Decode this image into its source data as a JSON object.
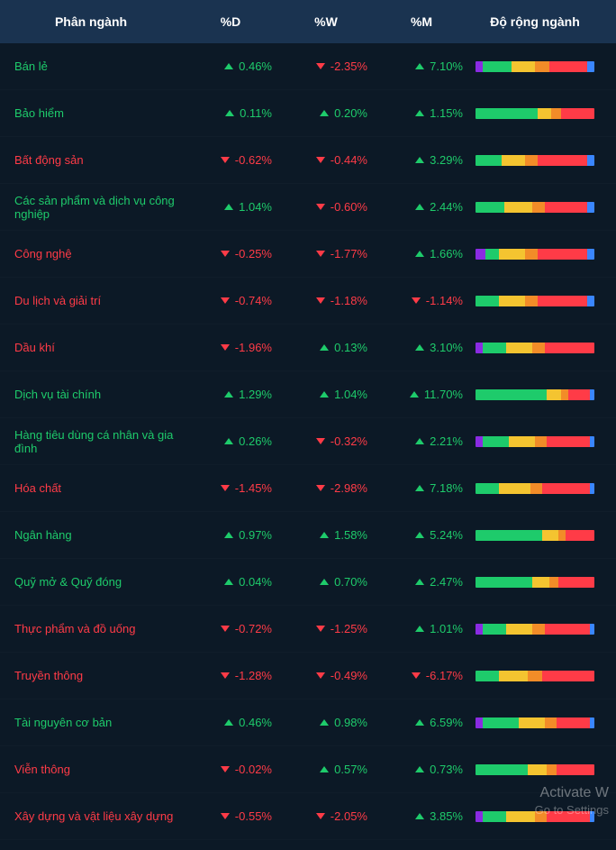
{
  "colors": {
    "background": "#0c1926",
    "header_bg": "#1a3350",
    "up": "#1ecb6b",
    "down": "#ff3b47",
    "seg_purple": "#8a2be2",
    "seg_green": "#1ecb6b",
    "seg_yellow": "#f4c430",
    "seg_orange": "#f28c28",
    "seg_red": "#ff3b47",
    "seg_blue": "#3a86ff"
  },
  "header": {
    "c1": "Phân ngành",
    "c2": "%D",
    "c3": "%W",
    "c4": "%M",
    "c5": "Độ rộng ngành"
  },
  "watermark": {
    "line1": "Activate W",
    "line2": "Go to Settings"
  },
  "rows": [
    {
      "name": "Bán lẻ",
      "d": "0.46%",
      "d_dir": "up",
      "w": "-2.35%",
      "w_dir": "down",
      "m": "7.10%",
      "m_dir": "up",
      "bar": [
        [
          "purple",
          6
        ],
        [
          "green",
          24
        ],
        [
          "yellow",
          20
        ],
        [
          "orange",
          12
        ],
        [
          "red",
          32
        ],
        [
          "blue",
          6
        ]
      ]
    },
    {
      "name": "Bảo hiểm",
      "d": "0.11%",
      "d_dir": "up",
      "w": "0.20%",
      "w_dir": "up",
      "m": "1.15%",
      "m_dir": "up",
      "bar": [
        [
          "green",
          52
        ],
        [
          "yellow",
          12
        ],
        [
          "orange",
          8
        ],
        [
          "red",
          28
        ]
      ]
    },
    {
      "name": "Bất động sản",
      "d": "-0.62%",
      "d_dir": "down",
      "w": "-0.44%",
      "w_dir": "down",
      "m": "3.29%",
      "m_dir": "up",
      "bar": [
        [
          "green",
          22
        ],
        [
          "yellow",
          20
        ],
        [
          "orange",
          10
        ],
        [
          "red",
          42
        ],
        [
          "blue",
          6
        ]
      ]
    },
    {
      "name": "Các sản phẩm và dịch vụ công nghiệp",
      "d": "1.04%",
      "d_dir": "up",
      "w": "-0.60%",
      "w_dir": "down",
      "m": "2.44%",
      "m_dir": "up",
      "bar": [
        [
          "green",
          24
        ],
        [
          "yellow",
          24
        ],
        [
          "orange",
          10
        ],
        [
          "red",
          36
        ],
        [
          "blue",
          6
        ]
      ]
    },
    {
      "name": "Công nghệ",
      "d": "-0.25%",
      "d_dir": "down",
      "w": "-1.77%",
      "w_dir": "down",
      "m": "1.66%",
      "m_dir": "up",
      "bar": [
        [
          "purple",
          8
        ],
        [
          "green",
          12
        ],
        [
          "yellow",
          22
        ],
        [
          "orange",
          10
        ],
        [
          "red",
          42
        ],
        [
          "blue",
          6
        ]
      ]
    },
    {
      "name": "Du lịch và giải trí",
      "d": "-0.74%",
      "d_dir": "down",
      "w": "-1.18%",
      "w_dir": "down",
      "m": "-1.14%",
      "m_dir": "down",
      "bar": [
        [
          "green",
          20
        ],
        [
          "yellow",
          22
        ],
        [
          "orange",
          10
        ],
        [
          "red",
          42
        ],
        [
          "blue",
          6
        ]
      ]
    },
    {
      "name": "Dầu khí",
      "d": "-1.96%",
      "d_dir": "down",
      "w": "0.13%",
      "w_dir": "up",
      "m": "3.10%",
      "m_dir": "up",
      "bar": [
        [
          "purple",
          6
        ],
        [
          "green",
          20
        ],
        [
          "yellow",
          22
        ],
        [
          "orange",
          10
        ],
        [
          "red",
          42
        ]
      ]
    },
    {
      "name": "Dịch vụ tài chính",
      "d": "1.29%",
      "d_dir": "up",
      "w": "1.04%",
      "w_dir": "up",
      "m": "11.70%",
      "m_dir": "up",
      "bar": [
        [
          "green",
          60
        ],
        [
          "yellow",
          12
        ],
        [
          "orange",
          6
        ],
        [
          "red",
          18
        ],
        [
          "blue",
          4
        ]
      ]
    },
    {
      "name": "Hàng tiêu dùng cá nhân và gia đình",
      "d": "0.26%",
      "d_dir": "up",
      "w": "-0.32%",
      "w_dir": "down",
      "m": "2.21%",
      "m_dir": "up",
      "bar": [
        [
          "purple",
          6
        ],
        [
          "green",
          22
        ],
        [
          "yellow",
          22
        ],
        [
          "orange",
          10
        ],
        [
          "red",
          36
        ],
        [
          "blue",
          4
        ]
      ]
    },
    {
      "name": "Hóa chất",
      "d": "-1.45%",
      "d_dir": "down",
      "w": "-2.98%",
      "w_dir": "down",
      "m": "7.18%",
      "m_dir": "up",
      "bar": [
        [
          "green",
          20
        ],
        [
          "yellow",
          26
        ],
        [
          "orange",
          10
        ],
        [
          "red",
          40
        ],
        [
          "blue",
          4
        ]
      ]
    },
    {
      "name": "Ngân hàng",
      "d": "0.97%",
      "d_dir": "up",
      "w": "1.58%",
      "w_dir": "up",
      "m": "5.24%",
      "m_dir": "up",
      "bar": [
        [
          "green",
          56
        ],
        [
          "yellow",
          14
        ],
        [
          "orange",
          6
        ],
        [
          "red",
          24
        ]
      ]
    },
    {
      "name": "Quỹ mở & Quỹ đóng",
      "d": "0.04%",
      "d_dir": "up",
      "w": "0.70%",
      "w_dir": "up",
      "m": "2.47%",
      "m_dir": "up",
      "bar": [
        [
          "green",
          48
        ],
        [
          "yellow",
          14
        ],
        [
          "orange",
          8
        ],
        [
          "red",
          30
        ]
      ]
    },
    {
      "name": "Thực phẩm và đồ uống",
      "d": "-0.72%",
      "d_dir": "down",
      "w": "-1.25%",
      "w_dir": "down",
      "m": "1.01%",
      "m_dir": "up",
      "bar": [
        [
          "purple",
          6
        ],
        [
          "green",
          20
        ],
        [
          "yellow",
          22
        ],
        [
          "orange",
          10
        ],
        [
          "red",
          38
        ],
        [
          "blue",
          4
        ]
      ]
    },
    {
      "name": "Truyền thông",
      "d": "-1.28%",
      "d_dir": "down",
      "w": "-0.49%",
      "w_dir": "down",
      "m": "-6.17%",
      "m_dir": "down",
      "bar": [
        [
          "green",
          20
        ],
        [
          "yellow",
          24
        ],
        [
          "orange",
          12
        ],
        [
          "red",
          44
        ]
      ]
    },
    {
      "name": "Tài nguyên cơ bản",
      "d": "0.46%",
      "d_dir": "up",
      "w": "0.98%",
      "w_dir": "up",
      "m": "6.59%",
      "m_dir": "up",
      "bar": [
        [
          "purple",
          6
        ],
        [
          "green",
          30
        ],
        [
          "yellow",
          22
        ],
        [
          "orange",
          10
        ],
        [
          "red",
          28
        ],
        [
          "blue",
          4
        ]
      ]
    },
    {
      "name": "Viễn thông",
      "d": "-0.02%",
      "d_dir": "down",
      "w": "0.57%",
      "w_dir": "up",
      "m": "0.73%",
      "m_dir": "up",
      "bar": [
        [
          "green",
          44
        ],
        [
          "yellow",
          16
        ],
        [
          "orange",
          8
        ],
        [
          "red",
          32
        ]
      ]
    },
    {
      "name": "Xây dựng và vật liệu xây dựng",
      "d": "-0.55%",
      "d_dir": "down",
      "w": "-2.05%",
      "w_dir": "down",
      "m": "3.85%",
      "m_dir": "up",
      "bar": [
        [
          "purple",
          6
        ],
        [
          "green",
          20
        ],
        [
          "yellow",
          24
        ],
        [
          "orange",
          10
        ],
        [
          "red",
          36
        ],
        [
          "blue",
          4
        ]
      ]
    }
  ]
}
